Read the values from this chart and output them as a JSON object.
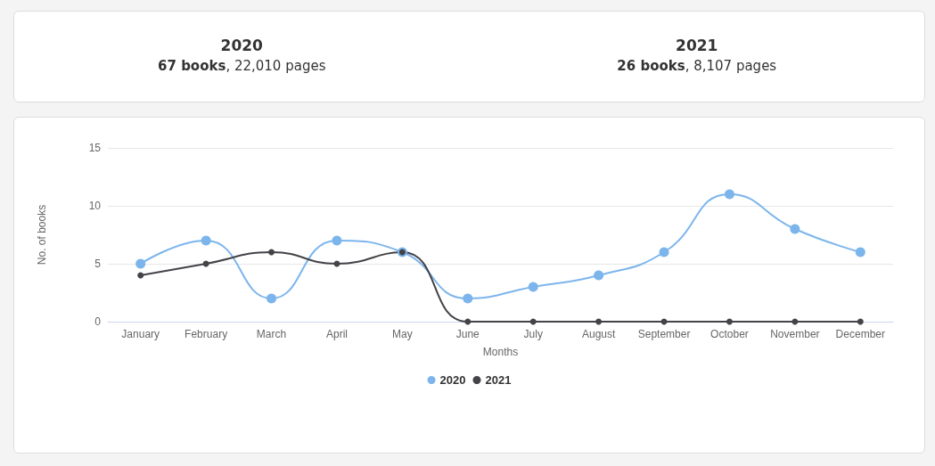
{
  "chart_data": {
    "type": "line",
    "xlabel": "Months",
    "ylabel": "No. of books",
    "annotations": [
      "2020",
      "67 books, 22,010 pages",
      "2021",
      "26 books, 8,107 pages"
    ],
    "categories": [
      "January",
      "February",
      "March",
      "April",
      "May",
      "June",
      "July",
      "August",
      "September",
      "October",
      "November",
      "December"
    ],
    "series": [
      {
        "name": "2020",
        "color": "#7cb5ec",
        "values": [
          5,
          7,
          2,
          7,
          6,
          2,
          3,
          4,
          6,
          11,
          8,
          6
        ]
      },
      {
        "name": "2021",
        "color": "#434348",
        "values": [
          4,
          5,
          6,
          5,
          6,
          0,
          0,
          0,
          0,
          0,
          0,
          0
        ]
      }
    ],
    "ylim": [
      0,
      15
    ],
    "yticks": [
      0,
      5,
      10,
      15
    ],
    "grid": "y",
    "legend": "bottom",
    "marker": "circle",
    "line_style": "solid"
  }
}
